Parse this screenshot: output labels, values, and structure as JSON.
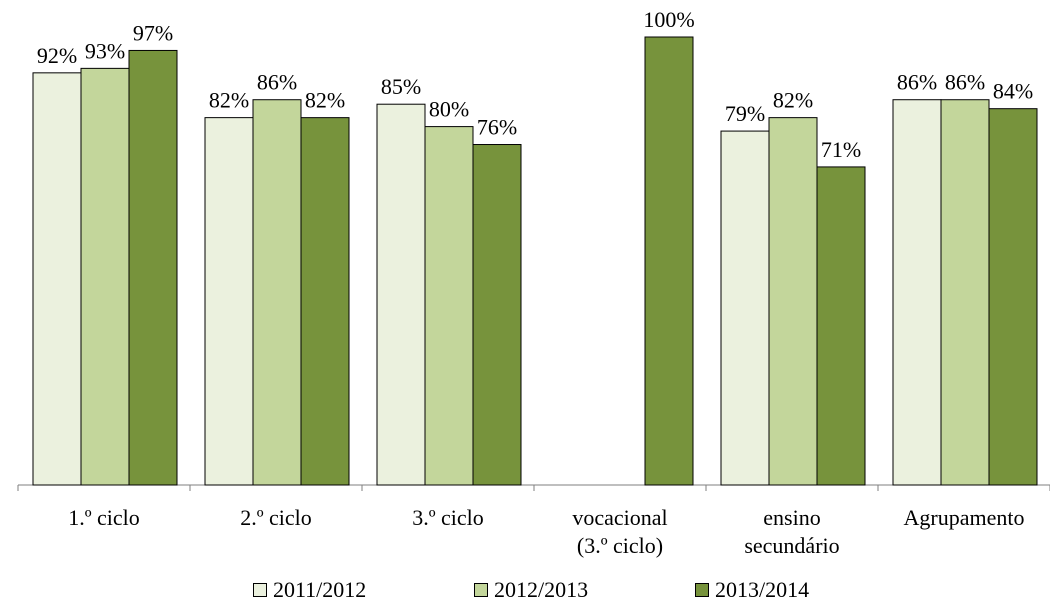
{
  "chart_data": {
    "type": "bar",
    "categories": [
      [
        "1.º ciclo"
      ],
      [
        "2.º ciclo"
      ],
      [
        "3.º ciclo"
      ],
      [
        "vocacional",
        "(3.º ciclo)"
      ],
      [
        "ensino",
        "secundário"
      ],
      [
        "Agrupamento"
      ]
    ],
    "series": [
      {
        "name": "2011/2012",
        "color": "#EBF1DE",
        "values": [
          92,
          82,
          85,
          null,
          79,
          86
        ],
        "labels": [
          "92%",
          "82%",
          "85%",
          "",
          "79%",
          "86%"
        ]
      },
      {
        "name": "2012/2013",
        "color": "#C3D69B",
        "values": [
          93,
          86,
          80,
          null,
          82,
          86
        ],
        "labels": [
          "93%",
          "86%",
          "80%",
          "",
          "82%",
          "86%"
        ]
      },
      {
        "name": "2013/2014",
        "color": "#77933C",
        "values": [
          97,
          82,
          76,
          100,
          71,
          84
        ],
        "labels": [
          "97%",
          "82%",
          "76%",
          "100%",
          "71%",
          "84%"
        ]
      }
    ],
    "ylim": [
      0,
      100
    ],
    "grid": false,
    "legend_position": "bottom"
  }
}
